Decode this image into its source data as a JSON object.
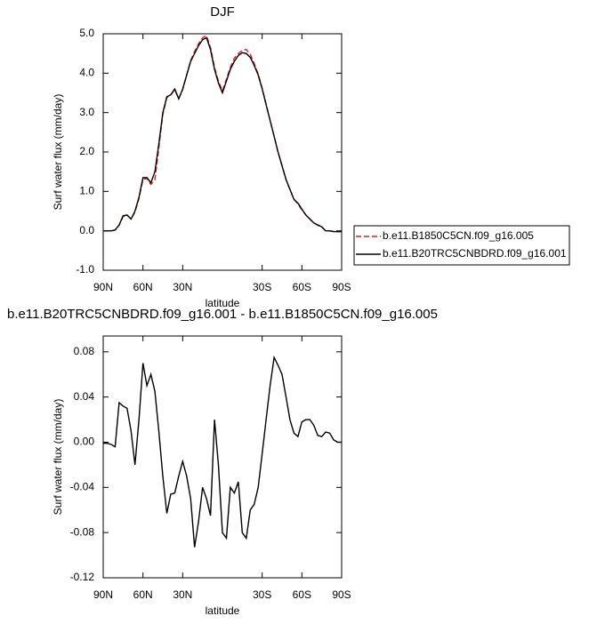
{
  "chart_data": [
    {
      "type": "line",
      "title": "DJF",
      "xlabel": "latitude",
      "ylabel": "Surf water flux (mm/day)",
      "x": [
        90,
        87,
        84,
        81,
        78,
        75,
        72,
        69,
        66,
        63,
        60,
        57,
        54,
        51,
        48,
        45,
        42,
        39,
        36,
        33,
        30,
        27,
        24,
        21,
        18,
        15,
        12,
        9,
        6,
        3,
        0,
        -3,
        -6,
        -9,
        -12,
        -15,
        -18,
        -21,
        -24,
        -27,
        -30,
        -33,
        -36,
        -39,
        -42,
        -45,
        -48,
        -51,
        -54,
        -57,
        -60,
        -63,
        -66,
        -69,
        -72,
        -75,
        -78,
        -81,
        -84,
        -87,
        -90
      ],
      "series": [
        {
          "name": "b.e11.B1850C5CN.f09_g16.005",
          "color": "#e41a1c",
          "line_style": "dashed",
          "values": [
            0,
            0,
            0,
            0.02,
            0.14,
            0.36,
            0.4,
            0.3,
            0.48,
            0.82,
            1.3,
            1.33,
            1.18,
            1.3,
            2.1,
            2.95,
            3.38,
            3.45,
            3.58,
            3.36,
            3.58,
            3.95,
            4.32,
            4.55,
            4.75,
            4.9,
            4.95,
            4.65,
            4.15,
            3.8,
            3.55,
            3.85,
            4.15,
            4.38,
            4.5,
            4.58,
            4.6,
            4.48,
            4.25,
            3.98,
            3.62,
            3.22,
            2.8,
            2.4,
            2.0,
            1.65,
            1.3,
            1.05,
            0.8,
            0.68,
            0.53,
            0.4,
            0.3,
            0.2,
            0.14,
            0.09,
            0.0,
            0.0,
            -0.02,
            -0.02,
            -0.02
          ]
        },
        {
          "name": "b.e11.B20TRC5CNBDRD.f09_g16.001",
          "color": "#000000",
          "line_style": "solid",
          "values": [
            0,
            0,
            0,
            0.02,
            0.15,
            0.38,
            0.4,
            0.3,
            0.5,
            0.85,
            1.35,
            1.35,
            1.22,
            1.5,
            2.2,
            3.0,
            3.4,
            3.45,
            3.6,
            3.35,
            3.6,
            3.95,
            4.3,
            4.5,
            4.7,
            4.85,
            4.9,
            4.6,
            4.1,
            3.75,
            3.5,
            3.8,
            4.1,
            4.3,
            4.45,
            4.52,
            4.5,
            4.4,
            4.2,
            3.95,
            3.6,
            3.2,
            2.8,
            2.4,
            2.0,
            1.65,
            1.3,
            1.05,
            0.8,
            0.7,
            0.55,
            0.4,
            0.3,
            0.2,
            0.15,
            0.1,
            0.0,
            0.0,
            -0.02,
            -0.02,
            -0.02
          ]
        }
      ],
      "xlim": [
        90,
        -90
      ],
      "xticks": [
        {
          "value": 90,
          "label": "90N"
        },
        {
          "value": 60,
          "label": "60N"
        },
        {
          "value": 30,
          "label": "30N"
        },
        {
          "value": -30,
          "label": "30S"
        },
        {
          "value": -60,
          "label": "60S"
        },
        {
          "value": -90,
          "label": "90S"
        }
      ],
      "ylim": [
        -1,
        5
      ],
      "yticks": [
        {
          "value": -1,
          "label": "-1.0"
        },
        {
          "value": 0,
          "label": "0.0"
        },
        {
          "value": 1,
          "label": "1.0"
        },
        {
          "value": 2,
          "label": "2.0"
        },
        {
          "value": 3,
          "label": "3.0"
        },
        {
          "value": 4,
          "label": "4.0"
        },
        {
          "value": 5,
          "label": "5.0"
        }
      ],
      "legend": "outside right"
    },
    {
      "type": "line",
      "title": "b.e11.B20TRC5CNBDRD.f09_g16.001 - b.e11.B1850C5CN.f09_g16.005",
      "xlabel": "latitude",
      "ylabel": "Surf water flux (mm/day)",
      "x": [
        90,
        87,
        84,
        81,
        78,
        75,
        72,
        69,
        66,
        63,
        60,
        57,
        54,
        51,
        48,
        45,
        42,
        39,
        36,
        33,
        30,
        27,
        24,
        21,
        18,
        15,
        12,
        9,
        6,
        3,
        0,
        -3,
        -6,
        -9,
        -12,
        -15,
        -18,
        -21,
        -24,
        -27,
        -30,
        -33,
        -36,
        -39,
        -42,
        -45,
        -48,
        -51,
        -54,
        -57,
        -60,
        -63,
        -66,
        -69,
        -72,
        -75,
        -78,
        -81,
        -84,
        -87,
        -90
      ],
      "series": [
        {
          "color": "#000000",
          "values": [
            -0.001,
            -0.001,
            -0.002,
            -0.004,
            0.035,
            0.032,
            0.03,
            0.01,
            -0.02,
            0.02,
            0.07,
            0.05,
            0.06,
            0.045,
            0.01,
            -0.03,
            -0.063,
            -0.046,
            -0.045,
            -0.03,
            -0.017,
            -0.03,
            -0.05,
            -0.093,
            -0.07,
            -0.04,
            -0.05,
            -0.065,
            0.02,
            -0.02,
            -0.08,
            -0.085,
            -0.04,
            -0.045,
            -0.035,
            -0.08,
            -0.085,
            -0.06,
            -0.055,
            -0.04,
            -0.01,
            0.02,
            0.05,
            0.075,
            0.068,
            0.06,
            0.04,
            0.02,
            0.008,
            0.005,
            0.018,
            0.02,
            0.02,
            0.015,
            0.006,
            0.005,
            0.009,
            0.008,
            0.002,
            0.0,
            0.0
          ]
        }
      ],
      "xlim": [
        90,
        -90
      ],
      "xticks": [
        {
          "value": 90,
          "label": "90N"
        },
        {
          "value": 60,
          "label": "60N"
        },
        {
          "value": 30,
          "label": "30N"
        },
        {
          "value": -30,
          "label": "30S"
        },
        {
          "value": -60,
          "label": "60S"
        },
        {
          "value": -90,
          "label": "90S"
        }
      ],
      "ylim": [
        -0.12,
        0.094
      ],
      "yticks": [
        -0.12,
        -0.08,
        -0.04,
        {
          "value": 0,
          "label": "0.00"
        },
        0.04,
        0.08
      ]
    }
  ]
}
